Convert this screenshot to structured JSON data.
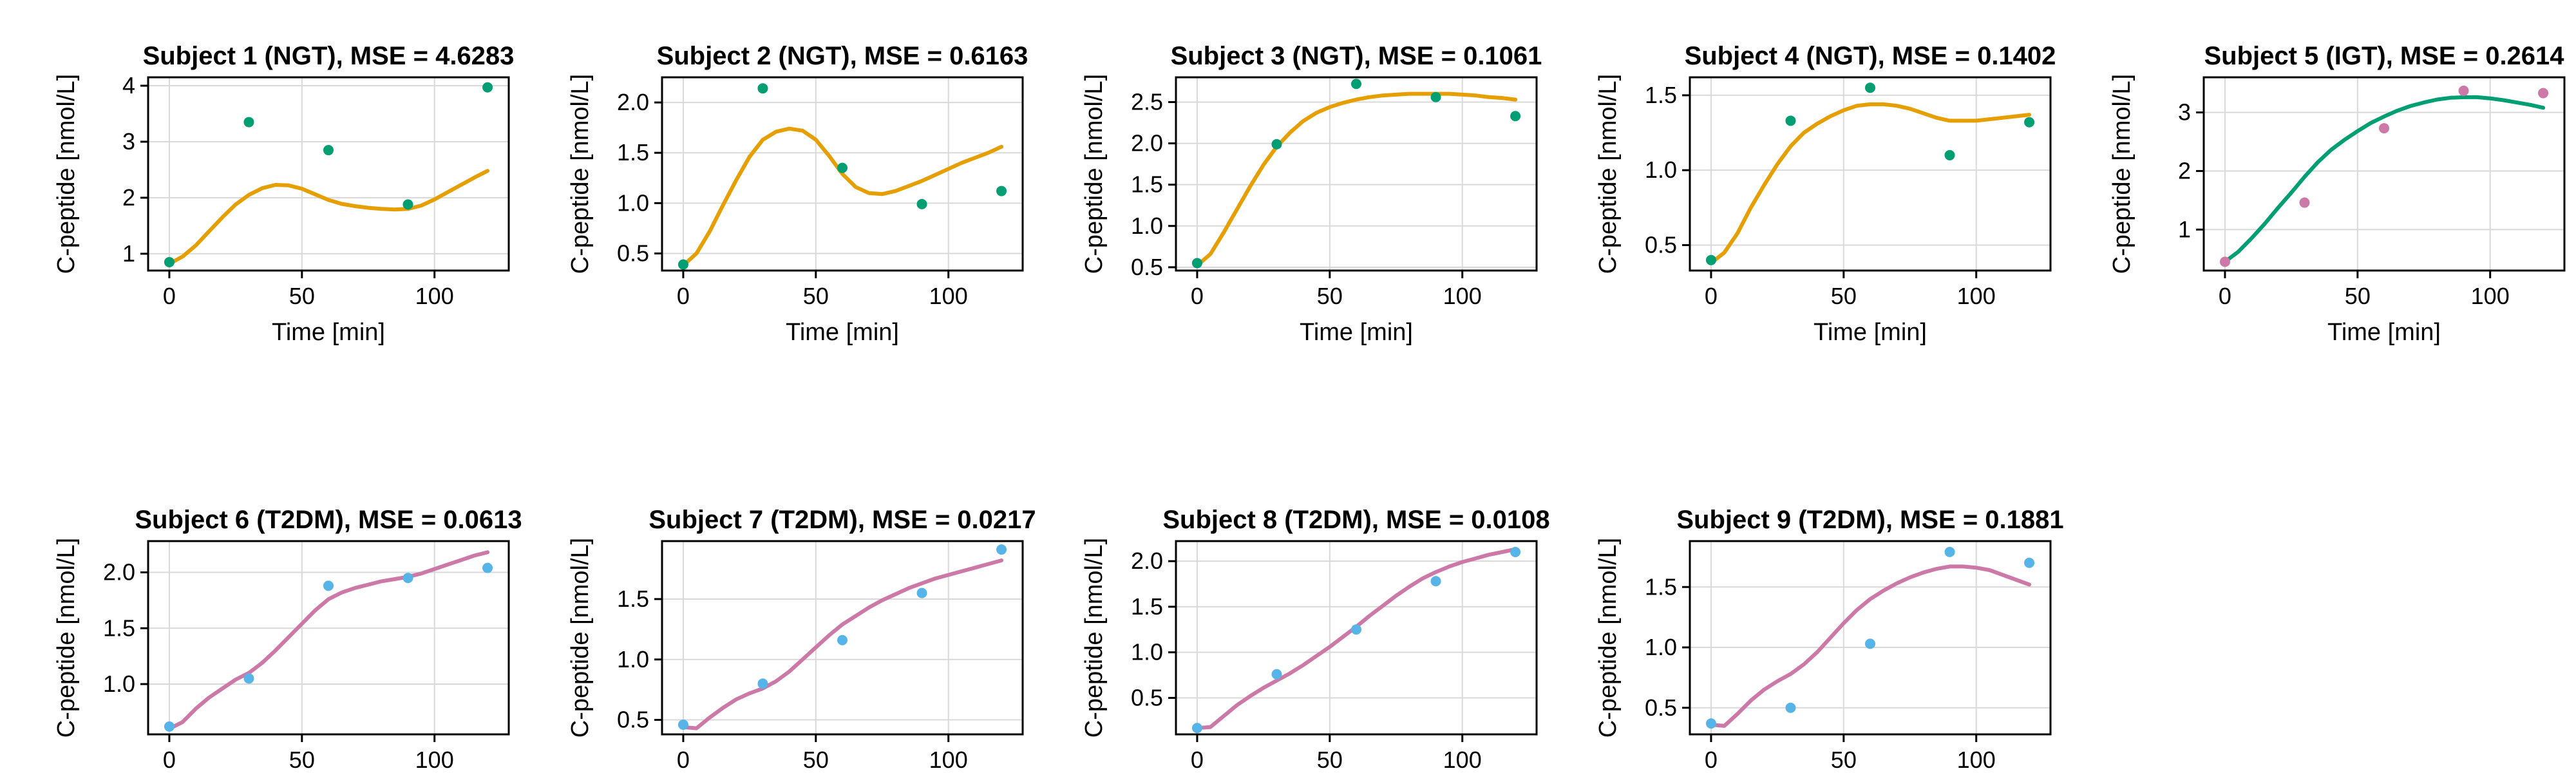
{
  "colors": {
    "orange": "#E69F00",
    "green": "#009E73",
    "pink": "#CC79A7",
    "blue": "#56B4E9"
  },
  "chart_data": [
    {
      "type": "line",
      "title": "Subject 1 (NGT), MSE = 4.6283",
      "xlabel": "Time [min]",
      "ylabel": "C-peptide [nmol/L]",
      "xlim": [
        -8,
        128
      ],
      "ylim": [
        0.7,
        4.15
      ],
      "xticks": [
        0,
        50,
        100
      ],
      "yticks": [
        1,
        2,
        3,
        4
      ],
      "grid": true,
      "line_color": "#E69F00",
      "point_color": "#009E73",
      "observed": {
        "x": [
          0,
          30,
          60,
          90,
          120
        ],
        "y": [
          0.85,
          3.35,
          2.85,
          1.88,
          3.97
        ]
      },
      "model": {
        "x": [
          0,
          5,
          10,
          15,
          20,
          25,
          30,
          35,
          40,
          45,
          50,
          55,
          60,
          65,
          70,
          75,
          80,
          85,
          90,
          95,
          100,
          105,
          110,
          115,
          120
        ],
        "y": [
          0.82,
          0.95,
          1.15,
          1.4,
          1.65,
          1.88,
          2.05,
          2.17,
          2.23,
          2.22,
          2.16,
          2.06,
          1.96,
          1.89,
          1.85,
          1.82,
          1.8,
          1.79,
          1.8,
          1.86,
          1.97,
          2.1,
          2.23,
          2.36,
          2.48
        ]
      }
    },
    {
      "type": "line",
      "title": "Subject 2 (NGT), MSE = 0.6163",
      "xlabel": "Time [min]",
      "ylabel": "C-peptide [nmol/L]",
      "xlim": [
        -8,
        128
      ],
      "ylim": [
        0.33,
        2.25
      ],
      "xticks": [
        0,
        50,
        100
      ],
      "yticks": [
        0.5,
        1.0,
        1.5,
        2.0
      ],
      "grid": true,
      "line_color": "#E69F00",
      "point_color": "#009E73",
      "observed": {
        "x": [
          0,
          30,
          60,
          90,
          120
        ],
        "y": [
          0.39,
          2.14,
          1.35,
          0.99,
          1.12
        ]
      },
      "model": {
        "x": [
          0,
          5,
          10,
          15,
          20,
          25,
          30,
          35,
          40,
          45,
          50,
          55,
          60,
          65,
          70,
          75,
          80,
          85,
          90,
          95,
          100,
          105,
          110,
          115,
          120
        ],
        "y": [
          0.38,
          0.5,
          0.72,
          0.98,
          1.23,
          1.46,
          1.63,
          1.71,
          1.74,
          1.72,
          1.63,
          1.47,
          1.29,
          1.16,
          1.1,
          1.09,
          1.12,
          1.17,
          1.22,
          1.28,
          1.34,
          1.4,
          1.45,
          1.5,
          1.56
        ]
      }
    },
    {
      "type": "line",
      "title": "Subject 3 (NGT), MSE = 0.1061",
      "xlabel": "Time [min]",
      "ylabel": "C-peptide [nmol/L]",
      "xlim": [
        -8,
        128
      ],
      "ylim": [
        0.46,
        2.8
      ],
      "xticks": [
        0,
        50,
        100
      ],
      "yticks": [
        0.5,
        1.0,
        1.5,
        2.0,
        2.5
      ],
      "grid": true,
      "line_color": "#E69F00",
      "point_color": "#009E73",
      "observed": {
        "x": [
          0,
          30,
          60,
          90,
          120
        ],
        "y": [
          0.55,
          1.99,
          2.72,
          2.56,
          2.33
        ]
      },
      "model": {
        "x": [
          0,
          5,
          10,
          15,
          20,
          25,
          30,
          35,
          40,
          45,
          50,
          55,
          60,
          65,
          70,
          75,
          80,
          85,
          90,
          95,
          100,
          105,
          110,
          115,
          120
        ],
        "y": [
          0.52,
          0.66,
          0.92,
          1.2,
          1.48,
          1.74,
          1.96,
          2.13,
          2.27,
          2.37,
          2.44,
          2.49,
          2.53,
          2.56,
          2.58,
          2.59,
          2.6,
          2.6,
          2.6,
          2.6,
          2.59,
          2.58,
          2.56,
          2.55,
          2.53
        ]
      }
    },
    {
      "type": "line",
      "title": "Subject 4 (NGT), MSE = 0.1402",
      "xlabel": "Time [min]",
      "ylabel": "C-peptide [nmol/L]",
      "xlim": [
        -8,
        128
      ],
      "ylim": [
        0.33,
        1.62
      ],
      "xticks": [
        0,
        50,
        100
      ],
      "yticks": [
        0.5,
        1.0,
        1.5
      ],
      "grid": true,
      "line_color": "#E69F00",
      "point_color": "#009E73",
      "observed": {
        "x": [
          0,
          30,
          60,
          90,
          120
        ],
        "y": [
          0.4,
          1.33,
          1.55,
          1.1,
          1.32
        ]
      },
      "model": {
        "x": [
          0,
          5,
          10,
          15,
          20,
          25,
          30,
          35,
          40,
          45,
          50,
          55,
          60,
          65,
          70,
          75,
          80,
          85,
          90,
          95,
          100,
          105,
          110,
          115,
          120
        ],
        "y": [
          0.38,
          0.45,
          0.58,
          0.75,
          0.9,
          1.04,
          1.16,
          1.25,
          1.31,
          1.36,
          1.4,
          1.43,
          1.44,
          1.44,
          1.43,
          1.41,
          1.38,
          1.35,
          1.33,
          1.33,
          1.33,
          1.34,
          1.35,
          1.36,
          1.37
        ]
      }
    },
    {
      "type": "line",
      "title": "Subject 5 (IGT), MSE = 0.2614",
      "xlabel": "Time [min]",
      "ylabel": "C-peptide [nmol/L]",
      "xlim": [
        -8,
        128
      ],
      "ylim": [
        0.3,
        3.6
      ],
      "xticks": [
        0,
        50,
        100
      ],
      "yticks": [
        1,
        2,
        3
      ],
      "grid": true,
      "line_color": "#009E73",
      "point_color": "#CC79A7",
      "observed": {
        "x": [
          0,
          30,
          60,
          90,
          120
        ],
        "y": [
          0.45,
          1.46,
          2.73,
          3.37,
          3.33
        ]
      },
      "model": {
        "x": [
          0,
          5,
          10,
          15,
          20,
          25,
          30,
          35,
          40,
          45,
          50,
          55,
          60,
          65,
          70,
          75,
          80,
          85,
          90,
          95,
          100,
          105,
          110,
          115,
          120
        ],
        "y": [
          0.45,
          0.62,
          0.85,
          1.1,
          1.37,
          1.63,
          1.9,
          2.15,
          2.36,
          2.53,
          2.68,
          2.82,
          2.93,
          3.03,
          3.11,
          3.17,
          3.22,
          3.25,
          3.26,
          3.26,
          3.24,
          3.21,
          3.17,
          3.13,
          3.08
        ]
      }
    },
    {
      "type": "line",
      "title": "Subject 6 (T2DM), MSE = 0.0613",
      "xlabel": "Time [min]",
      "ylabel": "C-peptide [nmol/L]",
      "xlim": [
        -8,
        128
      ],
      "ylim": [
        0.55,
        2.28
      ],
      "xticks": [
        0,
        50,
        100
      ],
      "yticks": [
        1.0,
        1.5,
        2.0
      ],
      "grid": true,
      "line_color": "#CC79A7",
      "point_color": "#56B4E9",
      "observed": {
        "x": [
          0,
          30,
          60,
          90,
          120
        ],
        "y": [
          0.62,
          1.05,
          1.88,
          1.95,
          2.04
        ]
      },
      "model": {
        "x": [
          0,
          5,
          10,
          15,
          20,
          25,
          30,
          35,
          40,
          45,
          50,
          55,
          60,
          65,
          70,
          75,
          80,
          85,
          90,
          95,
          100,
          105,
          110,
          115,
          120
        ],
        "y": [
          0.6,
          0.66,
          0.78,
          0.88,
          0.96,
          1.04,
          1.1,
          1.19,
          1.3,
          1.42,
          1.54,
          1.66,
          1.76,
          1.82,
          1.86,
          1.89,
          1.92,
          1.94,
          1.96,
          1.99,
          2.03,
          2.07,
          2.11,
          2.15,
          2.18
        ]
      }
    },
    {
      "type": "line",
      "title": "Subject 7 (T2DM), MSE = 0.0217",
      "xlabel": "Time [min]",
      "ylabel": "C-peptide [nmol/L]",
      "xlim": [
        -8,
        128
      ],
      "ylim": [
        0.38,
        1.98
      ],
      "xticks": [
        0,
        50,
        100
      ],
      "yticks": [
        0.5,
        1.0,
        1.5
      ],
      "grid": true,
      "line_color": "#CC79A7",
      "point_color": "#56B4E9",
      "observed": {
        "x": [
          0,
          30,
          60,
          90,
          120
        ],
        "y": [
          0.46,
          0.8,
          1.16,
          1.55,
          1.91
        ]
      },
      "model": {
        "x": [
          0,
          5,
          10,
          15,
          20,
          25,
          30,
          35,
          40,
          45,
          50,
          55,
          60,
          65,
          70,
          75,
          80,
          85,
          90,
          95,
          100,
          105,
          110,
          115,
          120
        ],
        "y": [
          0.44,
          0.43,
          0.52,
          0.6,
          0.67,
          0.72,
          0.76,
          0.82,
          0.9,
          1.0,
          1.1,
          1.2,
          1.29,
          1.36,
          1.43,
          1.49,
          1.54,
          1.59,
          1.63,
          1.67,
          1.7,
          1.73,
          1.76,
          1.79,
          1.82
        ]
      }
    },
    {
      "type": "line",
      "title": "Subject 8 (T2DM), MSE = 0.0108",
      "xlabel": "Time [min]",
      "ylabel": "C-peptide [nmol/L]",
      "xlim": [
        -8,
        128
      ],
      "ylim": [
        0.1,
        2.22
      ],
      "xticks": [
        0,
        50,
        100
      ],
      "yticks": [
        0.5,
        1.0,
        1.5,
        2.0
      ],
      "grid": true,
      "line_color": "#CC79A7",
      "point_color": "#56B4E9",
      "observed": {
        "x": [
          0,
          30,
          60,
          90,
          120
        ],
        "y": [
          0.17,
          0.76,
          1.25,
          1.78,
          2.1
        ]
      },
      "model": {
        "x": [
          0,
          5,
          10,
          15,
          20,
          25,
          30,
          35,
          40,
          45,
          50,
          55,
          60,
          65,
          70,
          75,
          80,
          85,
          90,
          95,
          100,
          105,
          110,
          115,
          120
        ],
        "y": [
          0.17,
          0.18,
          0.3,
          0.42,
          0.52,
          0.61,
          0.69,
          0.77,
          0.86,
          0.96,
          1.06,
          1.17,
          1.28,
          1.4,
          1.51,
          1.62,
          1.72,
          1.81,
          1.88,
          1.94,
          1.99,
          2.03,
          2.07,
          2.1,
          2.13
        ]
      }
    },
    {
      "type": "line",
      "title": "Subject 9 (T2DM), MSE = 0.1881",
      "xlabel": "Time [min]",
      "ylabel": "C-peptide [nmol/L]",
      "xlim": [
        -8,
        128
      ],
      "ylim": [
        0.28,
        1.88
      ],
      "xticks": [
        0,
        50,
        100
      ],
      "yticks": [
        0.5,
        1.0,
        1.5
      ],
      "grid": true,
      "line_color": "#CC79A7",
      "point_color": "#56B4E9",
      "observed": {
        "x": [
          0,
          30,
          60,
          90,
          120
        ],
        "y": [
          0.37,
          0.5,
          1.03,
          1.79,
          1.7
        ]
      },
      "model": {
        "x": [
          0,
          5,
          10,
          15,
          20,
          25,
          30,
          35,
          40,
          45,
          50,
          55,
          60,
          65,
          70,
          75,
          80,
          85,
          90,
          95,
          100,
          105,
          110,
          115,
          120
        ],
        "y": [
          0.36,
          0.35,
          0.45,
          0.56,
          0.65,
          0.72,
          0.78,
          0.86,
          0.96,
          1.08,
          1.2,
          1.31,
          1.4,
          1.47,
          1.53,
          1.58,
          1.62,
          1.65,
          1.67,
          1.67,
          1.66,
          1.64,
          1.6,
          1.56,
          1.52
        ]
      }
    }
  ]
}
